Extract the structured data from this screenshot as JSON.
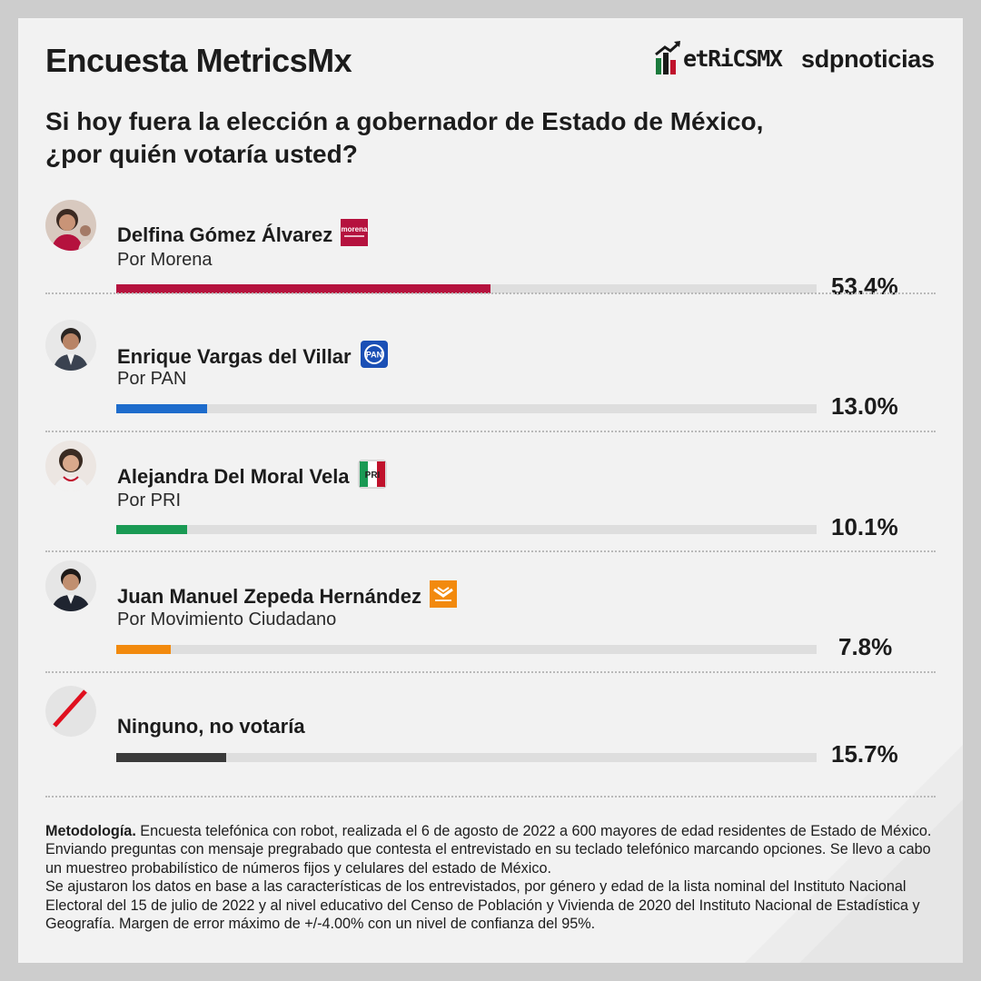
{
  "header": {
    "title": "Encuesta MetricsMx",
    "brand_metrics": "etRiCSMX",
    "brand_sdp": "sdpnoticias"
  },
  "question": {
    "line1": "Si hoy fuera la elección a gobernador de Estado de México,",
    "line2": "¿por quién votaría usted?"
  },
  "candidates": [
    {
      "name": "Delfina Gómez Álvarez",
      "party": "Por Morena",
      "percent_label": "53.4%",
      "value": 53.4,
      "color": "#b5123e",
      "party_logo": "morena-logo",
      "logo_text": "morena"
    },
    {
      "name": "Enrique Vargas del Villar",
      "party": "Por PAN",
      "percent_label": "13.0%",
      "value": 13.0,
      "color": "#1e6ccc",
      "party_logo": "pan-logo",
      "logo_text": "PAN"
    },
    {
      "name": "Alejandra Del Moral Vela",
      "party": "Por PRI",
      "percent_label": "10.1%",
      "value": 10.1,
      "color": "#1a9a54",
      "party_logo": "pri-logo",
      "logo_text": "PRI"
    },
    {
      "name": "Juan Manuel Zepeda Hernández",
      "party": "Por Movimiento Ciudadano",
      "percent_label": "7.8%",
      "value": 7.8,
      "color": "#f28a0e",
      "party_logo": "movimiento-ciudadano-logo"
    },
    {
      "name": "Ninguno, no votaría",
      "party": "",
      "percent_label": "15.7%",
      "value": 15.7,
      "color": "#3a3a3a",
      "party_logo": "none-slash-icon"
    }
  ],
  "chart_data": {
    "type": "bar",
    "orientation": "horizontal",
    "title": "Si hoy fuera la elección a gobernador de Estado de México, ¿por quién votaría usted?",
    "categories": [
      "Delfina Gómez Álvarez",
      "Enrique Vargas del Villar",
      "Alejandra Del Moral Vela",
      "Juan Manuel Zepeda Hernández",
      "Ninguno, no votaría"
    ],
    "values": [
      53.4,
      13.0,
      10.1,
      7.8,
      15.7
    ],
    "unit": "%",
    "xlim": [
      0,
      100
    ],
    "grid": false,
    "legend": "none"
  },
  "methodology": {
    "label": "Metodología.",
    "text1": " Encuesta telefónica con robot, realizada el 6 de agosto de 2022 a 600 mayores de edad residentes de Estado de México. Enviando preguntas con mensaje pregrabado que contesta el entrevistado en su teclado telefónico marcando opciones. Se llevo a cabo un muestreo probabilístico de números fijos y celulares del estado de México.",
    "text2": "Se ajustaron los datos en base a las características de los entrevistados, por género y edad de la lista nominal del Instituto Nacional Electoral del 15 de julio de 2022 y al nivel educativo del Censo de Población y Vivienda de 2020 del Instituto Nacional de Estadística y Geografía. Margen de error máximo de +/-4.00% con un nivel de confianza del 95%."
  },
  "colors": {
    "background": "#f2f2f2",
    "frame": "#cdcdcd",
    "track": "#dedede"
  }
}
